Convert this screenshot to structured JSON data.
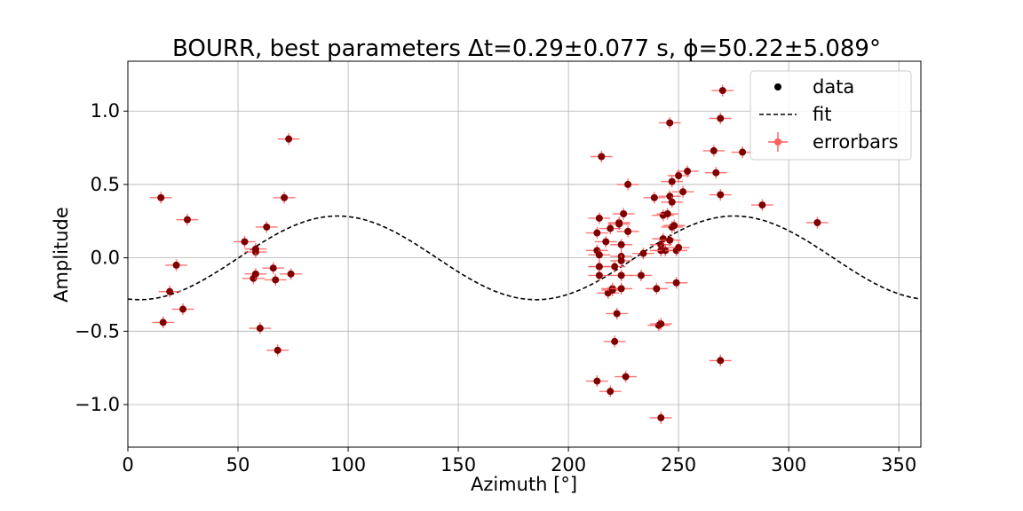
{
  "chart_data": {
    "type": "scatter",
    "title": "BOURR, best parameters Δt=0.29±0.077 s, ϕ=50.22±5.089°",
    "xlabel": "Azimuth [°]",
    "ylabel": "Amplitude",
    "xlim": [
      0,
      360
    ],
    "ylim": [
      -1.29,
      1.34
    ],
    "xticks": [
      0,
      50,
      100,
      150,
      200,
      250,
      300,
      350
    ],
    "xtick_labels": [
      "0",
      "50",
      "100",
      "150",
      "200",
      "250",
      "300",
      "350"
    ],
    "yticks": [
      -1.0,
      -0.5,
      0.0,
      0.5,
      1.0
    ],
    "ytick_labels": [
      "−1.0",
      "−0.5",
      "0.0",
      "0.5",
      "1.0"
    ],
    "grid": true,
    "legend_position": "top-right",
    "legend": [
      {
        "label": "data",
        "style": "marker"
      },
      {
        "label": "fit",
        "style": "dashed"
      },
      {
        "label": "errorbars",
        "style": "errorbar"
      }
    ],
    "colors": {
      "data": "#800000",
      "errorbars": "#ff5c5c",
      "fit": "#000000"
    },
    "errorbar_x": 5,
    "errorbar_y": 0.04,
    "fit": {
      "amplitude": 0.285,
      "phase_deg": 50.22,
      "period_deg": 180
    },
    "points": [
      [
        15,
        0.41
      ],
      [
        16,
        -0.44
      ],
      [
        19,
        -0.23
      ],
      [
        22,
        -0.05
      ],
      [
        25,
        -0.35
      ],
      [
        27,
        0.26
      ],
      [
        53,
        0.11
      ],
      [
        57,
        -0.14
      ],
      [
        58,
        0.04
      ],
      [
        58,
        0.06
      ],
      [
        58,
        -0.11
      ],
      [
        60,
        -0.48
      ],
      [
        63,
        0.21
      ],
      [
        66,
        -0.07
      ],
      [
        67,
        -0.15
      ],
      [
        68,
        -0.63
      ],
      [
        71,
        0.41
      ],
      [
        73,
        0.81
      ],
      [
        74,
        -0.11
      ],
      [
        213,
        -0.84
      ],
      [
        213,
        0.17
      ],
      [
        213,
        0.05
      ],
      [
        214,
        0.27
      ],
      [
        214,
        0.02
      ],
      [
        214,
        -0.06
      ],
      [
        214,
        -0.06
      ],
      [
        214,
        -0.12
      ],
      [
        215,
        0.69
      ],
      [
        217,
        0.11
      ],
      [
        218,
        -0.24
      ],
      [
        219,
        0.2
      ],
      [
        219,
        -0.91
      ],
      [
        220,
        -0.21
      ],
      [
        220,
        -0.22
      ],
      [
        221,
        -0.06
      ],
      [
        221,
        -0.57
      ],
      [
        222,
        -0.38
      ],
      [
        223,
        0.24
      ],
      [
        223,
        0.23
      ],
      [
        224,
        0.09
      ],
      [
        224,
        0.01
      ],
      [
        224,
        -0.02
      ],
      [
        224,
        -0.12
      ],
      [
        224,
        -0.21
      ],
      [
        225,
        0.3
      ],
      [
        226,
        -0.81
      ],
      [
        227,
        0.5
      ],
      [
        227,
        0.18
      ],
      [
        233,
        -0.12
      ],
      [
        234,
        0.03
      ],
      [
        239,
        0.41
      ],
      [
        240,
        -0.21
      ],
      [
        241,
        -0.46
      ],
      [
        242,
        -0.45
      ],
      [
        242,
        -1.09
      ],
      [
        242,
        0.09
      ],
      [
        242,
        0.05
      ],
      [
        243,
        0.13
      ],
      [
        243,
        0.29
      ],
      [
        244,
        0.05
      ],
      [
        245,
        0.3
      ],
      [
        246,
        0.12
      ],
      [
        246,
        0.42
      ],
      [
        246,
        0.92
      ],
      [
        247,
        0.38
      ],
      [
        247,
        0.52
      ],
      [
        247,
        0.21
      ],
      [
        248,
        0.22
      ],
      [
        249,
        -0.17
      ],
      [
        249,
        0.05
      ],
      [
        250,
        0.56
      ],
      [
        250,
        0.07
      ],
      [
        252,
        0.45
      ],
      [
        254,
        0.59
      ],
      [
        266,
        0.73
      ],
      [
        267,
        0.58
      ],
      [
        269,
        -0.7
      ],
      [
        269,
        0.95
      ],
      [
        269,
        0.43
      ],
      [
        270,
        1.14
      ],
      [
        279,
        0.72
      ],
      [
        288,
        0.36
      ],
      [
        313,
        0.24
      ]
    ]
  }
}
